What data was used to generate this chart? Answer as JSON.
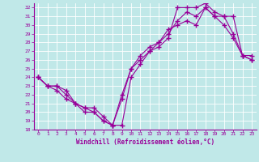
{
  "xlabel": "Windchill (Refroidissement éolien,°C)",
  "bg_color": "#c0e8e8",
  "line_color": "#990099",
  "grid_color": "#ffffff",
  "xlim": [
    -0.5,
    23.5
  ],
  "ylim": [
    18,
    32.5
  ],
  "yticks": [
    18,
    19,
    20,
    21,
    22,
    23,
    24,
    25,
    26,
    27,
    28,
    29,
    30,
    31,
    32
  ],
  "xticks": [
    0,
    1,
    2,
    3,
    4,
    5,
    6,
    7,
    8,
    9,
    10,
    11,
    12,
    13,
    14,
    15,
    16,
    17,
    18,
    19,
    20,
    21,
    22,
    23
  ],
  "line1_x": [
    0,
    1,
    2,
    3,
    4,
    5,
    6,
    7,
    8,
    9,
    10,
    11,
    12,
    13,
    14,
    15,
    16,
    17,
    18,
    19,
    20,
    21,
    22,
    23
  ],
  "line1_y": [
    24,
    23,
    23,
    22,
    21,
    20.5,
    20.5,
    19.5,
    18.5,
    21.5,
    25,
    26,
    27,
    28,
    29.5,
    30,
    30.5,
    30,
    32,
    31,
    31,
    29,
    26.5,
    26.5
  ],
  "line2_x": [
    0,
    1,
    2,
    3,
    4,
    5,
    6,
    7,
    8,
    9,
    10,
    11,
    12,
    13,
    14,
    15,
    16,
    17,
    18,
    19,
    20,
    21,
    22,
    23
  ],
  "line2_y": [
    24,
    23,
    22.5,
    21.5,
    21,
    20.5,
    20,
    19,
    18.5,
    18.5,
    24,
    25.5,
    27,
    27.5,
    28.5,
    32,
    32,
    32,
    32.5,
    31.5,
    31,
    31,
    26.5,
    26
  ],
  "line3_x": [
    0,
    1,
    2,
    3,
    4,
    5,
    6,
    7,
    8,
    9,
    10,
    11,
    12,
    13,
    14,
    15,
    16,
    17,
    18,
    19,
    20,
    21,
    22,
    23
  ],
  "line3_y": [
    24,
    23,
    23,
    22.5,
    21,
    20,
    20,
    19,
    18.5,
    22,
    25,
    26.5,
    27.5,
    28,
    29,
    30.5,
    31.5,
    31,
    32,
    31,
    30,
    28.5,
    26.5,
    26
  ]
}
